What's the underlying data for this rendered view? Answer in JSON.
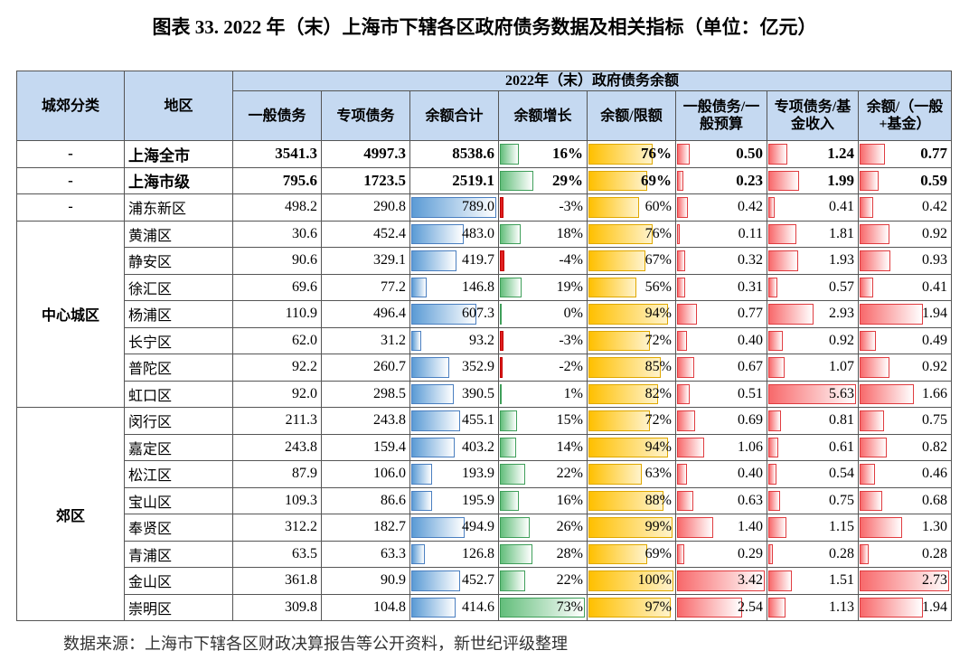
{
  "title": "图表 33. 2022 年（末）上海市下辖各区政府债务数据及相关指标（单位：亿元）",
  "table": {
    "header_top": "2022年（末）政府债务余额",
    "columns": [
      "城郊分类",
      "地区",
      "一般债务",
      "专项债务",
      "余额合计",
      "余额增长",
      "余额/限额",
      "一般债务/一般预算",
      "专项债务/基金收入",
      "余额/（一般+基金）"
    ],
    "groups": [
      {
        "label": "-",
        "districts": [
          [
            "上海全市",
            "3541.3",
            "4997.3",
            "8538.6",
            "16%",
            "76%",
            "0.50",
            "1.24",
            "0.77"
          ]
        ]
      },
      {
        "label": "-",
        "districts": [
          [
            "上海市级",
            "795.6",
            "1723.5",
            "2519.1",
            "29%",
            "69%",
            "0.23",
            "1.99",
            "0.59"
          ]
        ]
      },
      {
        "label": "-",
        "districts": [
          [
            "浦东新区",
            "498.2",
            "290.8",
            "789.0",
            "-3%",
            "60%",
            "0.42",
            "0.41",
            "0.42"
          ]
        ]
      },
      {
        "label": "中心城区",
        "districts": [
          [
            "黄浦区",
            "30.6",
            "452.4",
            "483.0",
            "18%",
            "76%",
            "0.11",
            "1.81",
            "0.92"
          ],
          [
            "静安区",
            "90.6",
            "329.1",
            "419.7",
            "-4%",
            "67%",
            "0.32",
            "1.93",
            "0.93"
          ],
          [
            "徐汇区",
            "69.6",
            "77.2",
            "146.8",
            "19%",
            "56%",
            "0.31",
            "0.57",
            "0.41"
          ],
          [
            "杨浦区",
            "110.9",
            "496.4",
            "607.3",
            "0%",
            "94%",
            "0.77",
            "2.93",
            "1.94"
          ],
          [
            "长宁区",
            "62.0",
            "31.2",
            "93.2",
            "-3%",
            "72%",
            "0.40",
            "0.92",
            "0.49"
          ],
          [
            "普陀区",
            "92.2",
            "260.7",
            "352.9",
            "-2%",
            "85%",
            "0.67",
            "1.07",
            "0.92"
          ],
          [
            "虹口区",
            "92.0",
            "298.5",
            "390.5",
            "1%",
            "82%",
            "0.51",
            "5.63",
            "1.66"
          ]
        ]
      },
      {
        "label": "郊区",
        "districts": [
          [
            "闵行区",
            "211.3",
            "243.8",
            "455.1",
            "15%",
            "72%",
            "0.69",
            "0.81",
            "0.75"
          ],
          [
            "嘉定区",
            "243.8",
            "159.4",
            "403.2",
            "14%",
            "94%",
            "1.06",
            "0.61",
            "0.82"
          ],
          [
            "松江区",
            "87.9",
            "106.0",
            "193.9",
            "22%",
            "63%",
            "0.40",
            "0.54",
            "0.46"
          ],
          [
            "宝山区",
            "109.3",
            "86.6",
            "195.9",
            "16%",
            "88%",
            "0.63",
            "0.75",
            "0.68"
          ],
          [
            "奉贤区",
            "312.2",
            "182.7",
            "494.9",
            "26%",
            "99%",
            "1.40",
            "1.15",
            "1.30"
          ],
          [
            "青浦区",
            "63.5",
            "63.3",
            "126.8",
            "28%",
            "69%",
            "0.29",
            "0.28",
            "0.28"
          ],
          [
            "金山区",
            "361.8",
            "90.9",
            "452.7",
            "22%",
            "100%",
            "3.42",
            "1.51",
            "2.73"
          ],
          [
            "崇明区",
            "309.8",
            "104.8",
            "414.6",
            "73%",
            "97%",
            "2.54",
            "1.13",
            "1.94"
          ]
        ]
      }
    ]
  },
  "source": "数据来源：上海市下辖各区财政决算报告等公开资料，新世纪评级整理"
}
